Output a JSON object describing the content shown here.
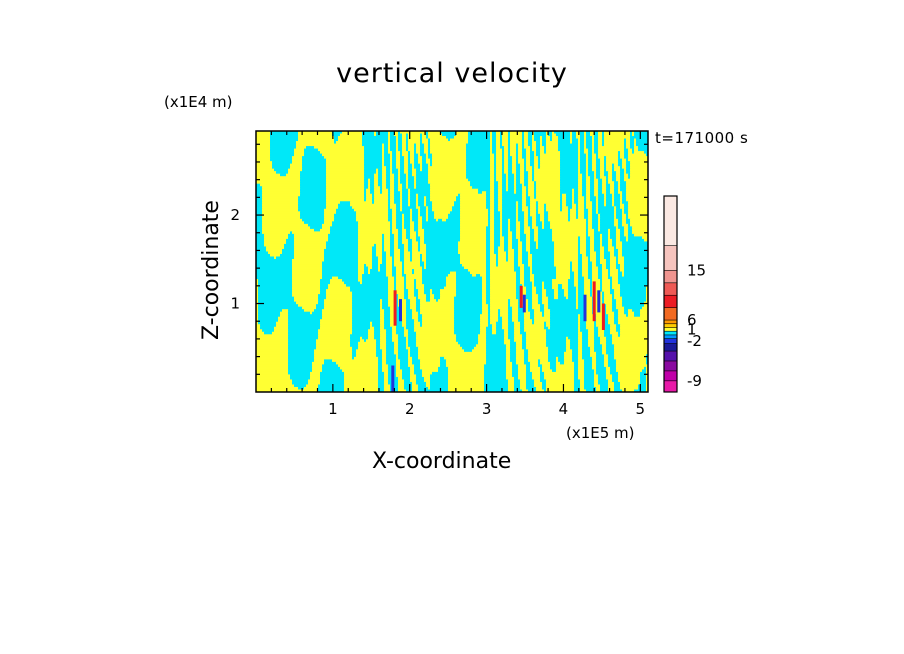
{
  "chart_data": {
    "type": "heatmap",
    "title": "vertical velocity",
    "xlabel": "X-coordinate",
    "ylabel": "Z-coordinate",
    "x_unit_label": "(x1E5 m)",
    "y_unit_label": "(x1E4 m)",
    "time_label": "t=171000 s",
    "xlim": [
      0,
      5.1
    ],
    "ylim": [
      0,
      2.95
    ],
    "x_ticks": [
      "1",
      "2",
      "3",
      "4",
      "5"
    ],
    "y_ticks": [
      "1",
      "2"
    ],
    "colorbar": {
      "tick_labels": [
        "15",
        "6",
        "1",
        "-2",
        "-9"
      ],
      "levels_top_to_bottom": [
        {
          "color": "#fbe9e3"
        },
        {
          "color": "#f6c4be"
        },
        {
          "color": "#f09590"
        },
        {
          "color": "#ee5a55"
        },
        {
          "color": "#ec1c24"
        },
        {
          "color": "#f26a22"
        },
        {
          "color": "#ff9900"
        },
        {
          "color": "#ffcc00"
        },
        {
          "color": "#ffff33"
        },
        {
          "color": "#00e8f8"
        },
        {
          "color": "#0099ff"
        },
        {
          "color": "#2233dd"
        },
        {
          "color": "#1a1a99"
        },
        {
          "color": "#5511aa"
        },
        {
          "color": "#8a0aa0"
        },
        {
          "color": "#c000a8"
        },
        {
          "color": "#e81aa8"
        }
      ]
    },
    "field_description_colors": {
      "positive_weak": "#ffff33",
      "negative_weak": "#00e8f8"
    },
    "updraft_columns_x": [
      1.85,
      3.45,
      4.4
    ]
  }
}
